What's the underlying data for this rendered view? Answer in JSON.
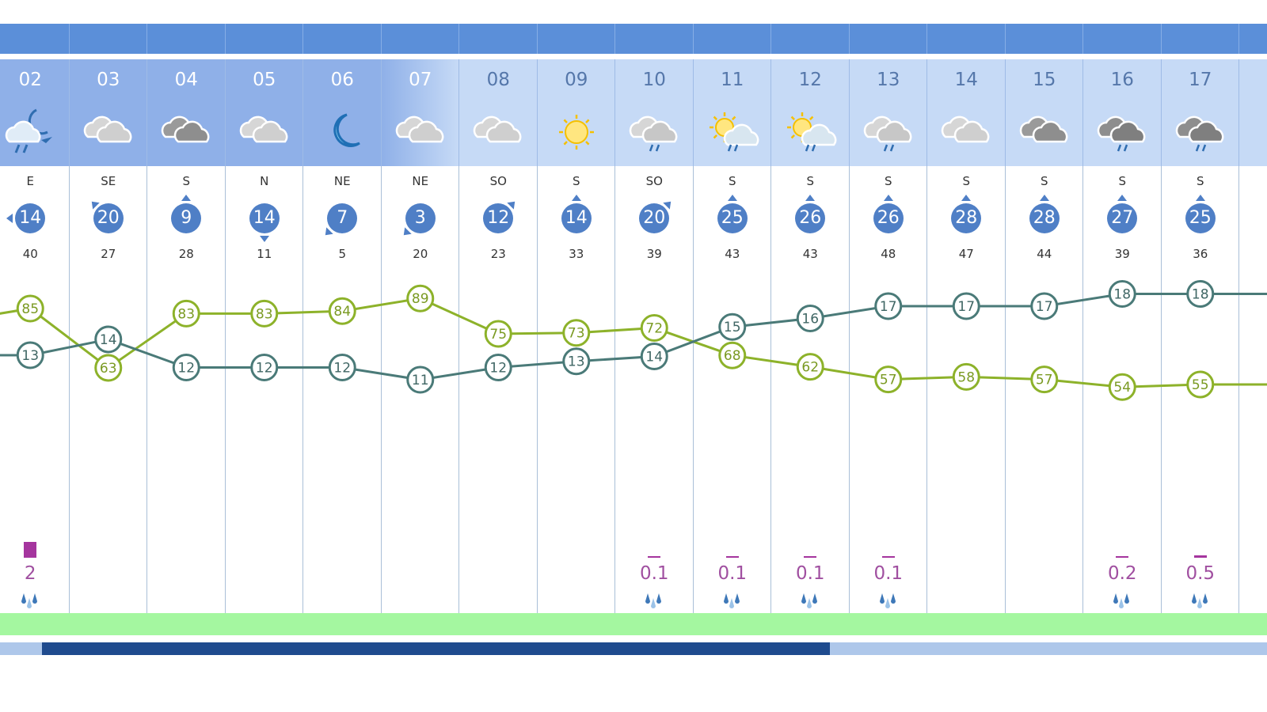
{
  "colors": {
    "temperature": "#4a7a78",
    "humidity": "#8db22a",
    "header": "#5b8fd9",
    "wind": "#4f7fc6",
    "precip": "#a5359e"
  },
  "hours": [
    {
      "hour": "02",
      "icon": "night-rain-icon",
      "night": true,
      "wind_dir": "E",
      "wind_speed": "14",
      "gust": "40",
      "temp": 13,
      "humidity": 85,
      "precip": "2",
      "precip_level": 1.0
    },
    {
      "hour": "03",
      "icon": "cloudy-icon",
      "night": true,
      "wind_dir": "SE",
      "wind_speed": "20",
      "gust": "27",
      "temp": 14,
      "humidity": 63
    },
    {
      "hour": "04",
      "icon": "dark-cloudy-icon",
      "night": true,
      "wind_dir": "S",
      "wind_speed": "9",
      "gust": "28",
      "temp": 12,
      "humidity": 83
    },
    {
      "hour": "05",
      "icon": "cloudy-icon",
      "night": true,
      "wind_dir": "N",
      "wind_speed": "14",
      "gust": "11",
      "temp": 12,
      "humidity": 83
    },
    {
      "hour": "06",
      "icon": "moon-icon",
      "night": true,
      "wind_dir": "NE",
      "wind_speed": "7",
      "gust": "5",
      "temp": 12,
      "humidity": 84
    },
    {
      "hour": "07",
      "icon": "cloudy-icon",
      "night": true,
      "wind_dir": "NE",
      "wind_speed": "3",
      "gust": "20",
      "temp": 11,
      "humidity": 89
    },
    {
      "hour": "08",
      "icon": "cloudy-icon",
      "night": false,
      "wind_dir": "SO",
      "wind_speed": "12",
      "gust": "23",
      "temp": 12,
      "humidity": 75
    },
    {
      "hour": "09",
      "icon": "sun-icon",
      "night": false,
      "wind_dir": "S",
      "wind_speed": "14",
      "gust": "33",
      "temp": 13,
      "humidity": 73
    },
    {
      "hour": "10",
      "icon": "rain-cloud-icon",
      "night": false,
      "wind_dir": "SO",
      "wind_speed": "20",
      "gust": "39",
      "temp": 14,
      "humidity": 72,
      "precip": "0.1",
      "precip_level": 0.05
    },
    {
      "hour": "11",
      "icon": "sun-cloud-rain-icon",
      "night": false,
      "wind_dir": "S",
      "wind_speed": "25",
      "gust": "43",
      "temp": 15,
      "humidity": 68,
      "precip": "0.1",
      "precip_level": 0.05
    },
    {
      "hour": "12",
      "icon": "sun-cloud-rain-icon",
      "night": false,
      "wind_dir": "S",
      "wind_speed": "26",
      "gust": "43",
      "temp": 16,
      "humidity": 62,
      "precip": "0.1",
      "precip_level": 0.05
    },
    {
      "hour": "13",
      "icon": "rain-cloud-icon",
      "night": false,
      "wind_dir": "S",
      "wind_speed": "26",
      "gust": "48",
      "temp": 17,
      "humidity": 57,
      "precip": "0.1",
      "precip_level": 0.05
    },
    {
      "hour": "14",
      "icon": "cloudy-icon",
      "night": false,
      "wind_dir": "S",
      "wind_speed": "28",
      "gust": "47",
      "temp": 17,
      "humidity": 58
    },
    {
      "hour": "15",
      "icon": "dark-cloudy-icon",
      "night": false,
      "wind_dir": "S",
      "wind_speed": "28",
      "gust": "44",
      "temp": 17,
      "humidity": 57
    },
    {
      "hour": "16",
      "icon": "dark-rain-cloud-icon",
      "night": false,
      "wind_dir": "S",
      "wind_speed": "27",
      "gust": "39",
      "temp": 18,
      "humidity": 54,
      "precip": "0.2",
      "precip_level": 0.08
    },
    {
      "hour": "17",
      "icon": "dark-rain-cloud-icon",
      "night": false,
      "wind_dir": "S",
      "wind_speed": "25",
      "gust": "36",
      "temp": 18,
      "humidity": 55,
      "precip": "0.5",
      "precip_level": 0.15
    }
  ],
  "scroll": {
    "position": 0.03,
    "visible_fraction": 0.62
  }
}
